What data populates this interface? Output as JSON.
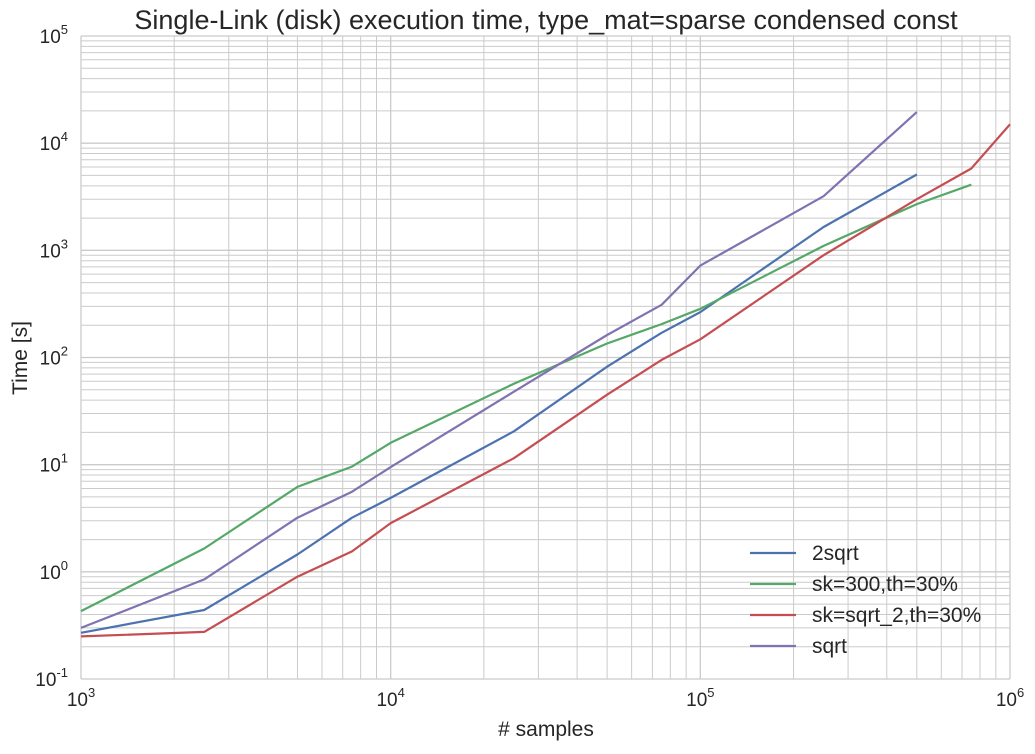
{
  "chart_data": {
    "type": "line",
    "title": "Single-Link (disk) execution time, type_mat=sparse condensed const",
    "xlabel": "# samples",
    "ylabel": "Time [s]",
    "x_scale": "log",
    "y_scale": "log",
    "xlim": [
      1000,
      1000000
    ],
    "ylim": [
      0.1,
      100000
    ],
    "grid": true,
    "legend_position": "lower-right",
    "x_ticks": [
      {
        "value": 1000,
        "base": "10",
        "exp": "3"
      },
      {
        "value": 10000,
        "base": "10",
        "exp": "4"
      },
      {
        "value": 100000,
        "base": "10",
        "exp": "5"
      },
      {
        "value": 1000000,
        "base": "10",
        "exp": "6"
      }
    ],
    "y_ticks": [
      {
        "value": 0.1,
        "base": "10",
        "exp": "-1"
      },
      {
        "value": 1,
        "base": "10",
        "exp": "0"
      },
      {
        "value": 10,
        "base": "10",
        "exp": "1"
      },
      {
        "value": 100,
        "base": "10",
        "exp": "2"
      },
      {
        "value": 1000,
        "base": "10",
        "exp": "3"
      },
      {
        "value": 10000,
        "base": "10",
        "exp": "4"
      },
      {
        "value": 100000,
        "base": "10",
        "exp": "5"
      }
    ],
    "series": [
      {
        "name": "2sqrt",
        "color": "#4c72b0",
        "x": [
          1000,
          2500,
          5000,
          7500,
          10000,
          25000,
          50000,
          75000,
          100000,
          250000,
          500000
        ],
        "y": [
          0.27,
          0.44,
          1.45,
          3.2,
          4.9,
          20.5,
          82,
          170,
          265,
          1650,
          5100
        ]
      },
      {
        "name": "sk=300,th=30%",
        "color": "#55a868",
        "x": [
          1000,
          2500,
          5000,
          7500,
          10000,
          25000,
          50000,
          75000,
          100000,
          250000,
          500000,
          750000
        ],
        "y": [
          0.43,
          1.65,
          6.2,
          9.6,
          16,
          57,
          135,
          205,
          285,
          1100,
          2700,
          4100
        ]
      },
      {
        "name": "sk=sqrt_2,th=30%",
        "color": "#c44e52",
        "x": [
          1000,
          2500,
          5000,
          7500,
          10000,
          25000,
          50000,
          75000,
          100000,
          250000,
          500000,
          750000,
          1000000
        ],
        "y": [
          0.25,
          0.275,
          0.9,
          1.55,
          2.85,
          11.5,
          45,
          95,
          148,
          900,
          3000,
          5800,
          15000
        ]
      },
      {
        "name": "sqrt",
        "color": "#8172b2",
        "x": [
          1000,
          2500,
          5000,
          7500,
          10000,
          25000,
          50000,
          75000,
          100000,
          250000,
          500000
        ],
        "y": [
          0.3,
          0.85,
          3.2,
          5.6,
          9.5,
          48,
          162,
          310,
          720,
          3200,
          19500
        ]
      }
    ]
  }
}
